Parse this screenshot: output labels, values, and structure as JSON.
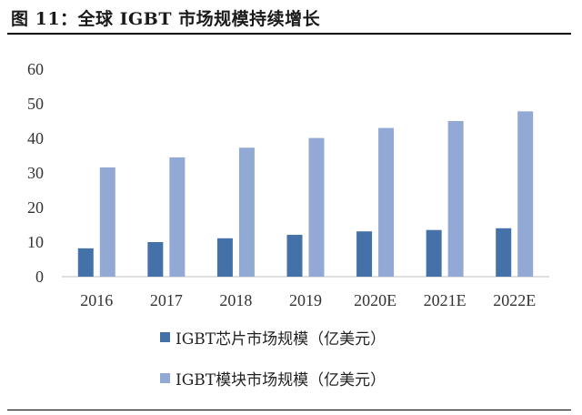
{
  "figure": {
    "title": "图 11：全球 IGBT 市场规模持续增长"
  },
  "chart_data": {
    "type": "bar",
    "categories": [
      "2016",
      "2017",
      "2018",
      "2019",
      "2020E",
      "2021E",
      "2022E"
    ],
    "series": [
      {
        "name": "IGBT芯片市场规模（亿美元）",
        "color": "#4472a8",
        "values": [
          8.2,
          10.0,
          11.1,
          12.1,
          13.1,
          13.5,
          14.0
        ]
      },
      {
        "name": "IGBT模块市场规模（亿美元）",
        "color": "#91a9d4",
        "values": [
          31.6,
          34.5,
          37.3,
          40.1,
          43.0,
          45.0,
          47.8
        ]
      }
    ],
    "yticks": [
      "0",
      "10",
      "20",
      "30",
      "40",
      "50",
      "60"
    ],
    "ylim": [
      0,
      60
    ],
    "title": "",
    "xlabel": "",
    "ylabel": "",
    "grid": false,
    "legend_position": "bottom"
  }
}
